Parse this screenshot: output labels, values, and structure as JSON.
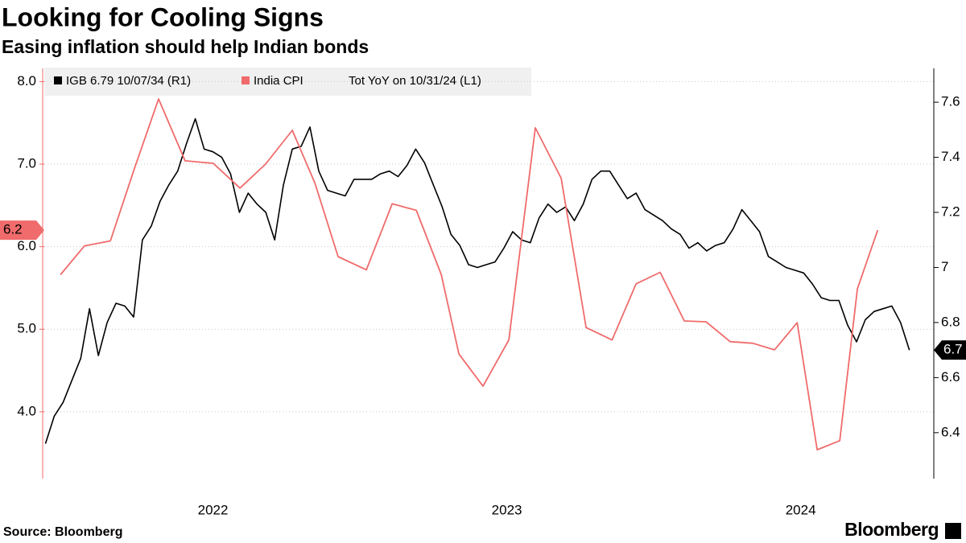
{
  "chart_data": {
    "type": "line",
    "title": "Looking for Cooling Signs",
    "subtitle": "Easing inflation should help Indian bonds",
    "source": "Source: Bloomberg",
    "brand": "Bloomberg",
    "xlim": [
      2021.926,
      2024.953
    ],
    "xticks": [
      {
        "value": 2022.5,
        "label": "2022"
      },
      {
        "value": 2023.5,
        "label": "2023"
      },
      {
        "value": 2024.5,
        "label": "2024"
      }
    ],
    "ylim": [
      3.19,
      8.16
    ],
    "yticks": [
      {
        "value": 4,
        "label": "4.0"
      },
      {
        "value": 5,
        "label": "5.0"
      },
      {
        "value": 6,
        "label": "6.0"
      },
      {
        "value": 7,
        "label": "7.0"
      },
      {
        "value": 8,
        "label": "8.0"
      }
    ],
    "y2lim": [
      6.233,
      7.723
    ],
    "y2ticks": [
      6.4,
      6.6,
      6.8,
      7.0,
      7.2,
      7.4,
      7.6
    ],
    "grid": true,
    "legend": "top-left",
    "series": [
      {
        "name": "IGB 6.79 10/07/34 (R1)",
        "color": "#000000",
        "axis": "y2",
        "x": [
          2021.93,
          2021.96,
          2021.99,
          2022.02,
          2022.05,
          2022.08,
          2022.11,
          2022.14,
          2022.17,
          2022.2,
          2022.23,
          2022.26,
          2022.29,
          2022.32,
          2022.35,
          2022.38,
          2022.41,
          2022.44,
          2022.47,
          2022.5,
          2022.53,
          2022.56,
          2022.59,
          2022.62,
          2022.65,
          2022.68,
          2022.71,
          2022.74,
          2022.77,
          2022.8,
          2022.83,
          2022.86,
          2022.89,
          2022.92,
          2022.95,
          2022.98,
          2023.01,
          2023.04,
          2023.07,
          2023.1,
          2023.13,
          2023.16,
          2023.19,
          2023.22,
          2023.25,
          2023.28,
          2023.31,
          2023.34,
          2023.37,
          2023.4,
          2023.43,
          2023.46,
          2023.49,
          2023.52,
          2023.55,
          2023.58,
          2023.61,
          2023.64,
          2023.67,
          2023.7,
          2023.73,
          2023.76,
          2023.79,
          2023.82,
          2023.85,
          2023.88,
          2023.91,
          2023.94,
          2023.97,
          2024.0,
          2024.03,
          2024.06,
          2024.09,
          2024.12,
          2024.15,
          2024.18,
          2024.21,
          2024.24,
          2024.27,
          2024.3,
          2024.33,
          2024.36,
          2024.39,
          2024.42,
          2024.45,
          2024.48,
          2024.51,
          2024.54,
          2024.57,
          2024.6,
          2024.63,
          2024.66,
          2024.69,
          2024.72,
          2024.75,
          2024.78,
          2024.81,
          2024.84,
          2024.87
        ],
        "values": [
          6.36,
          6.46,
          6.51,
          6.59,
          6.67,
          6.85,
          6.68,
          6.8,
          6.87,
          6.86,
          6.82,
          7.1,
          7.15,
          7.24,
          7.3,
          7.35,
          7.45,
          7.54,
          7.43,
          7.42,
          7.4,
          7.34,
          7.2,
          7.27,
          7.23,
          7.2,
          7.1,
          7.3,
          7.43,
          7.44,
          7.51,
          7.35,
          7.28,
          7.27,
          7.26,
          7.32,
          7.32,
          7.32,
          7.34,
          7.35,
          7.33,
          7.37,
          7.43,
          7.38,
          7.3,
          7.22,
          7.12,
          7.08,
          7.01,
          7.0,
          7.01,
          7.02,
          7.07,
          7.13,
          7.1,
          7.09,
          7.18,
          7.23,
          7.2,
          7.22,
          7.17,
          7.23,
          7.32,
          7.35,
          7.35,
          7.3,
          7.25,
          7.27,
          7.21,
          7.19,
          7.17,
          7.14,
          7.12,
          7.07,
          7.09,
          7.06,
          7.08,
          7.09,
          7.14,
          7.21,
          7.17,
          7.13,
          7.04,
          7.02,
          7.0,
          6.99,
          6.98,
          6.94,
          6.89,
          6.88,
          6.88,
          6.79,
          6.73,
          6.81,
          6.84,
          6.85,
          6.86,
          6.8,
          6.7
        ]
      },
      {
        "name": "India CPI",
        "description": "Tot YoY on 10/31/24 (L1)",
        "color": "#f06b6b",
        "x": [
          2021.981,
          2022.063,
          2022.151,
          2022.233,
          2022.315,
          2022.405,
          2022.501,
          2022.592,
          2022.679,
          2022.77,
          2022.847,
          2022.926,
          2023.022,
          2023.11,
          2023.192,
          2023.277,
          2023.337,
          2023.419,
          2023.507,
          2023.597,
          2023.685,
          2023.77,
          2023.858,
          2023.94,
          2024.022,
          2024.104,
          2024.178,
          2024.26,
          2024.337,
          2024.411,
          2024.488,
          2024.556,
          2024.633,
          2024.693,
          2024.762
        ],
        "values": [
          5.66,
          6.01,
          6.07,
          6.95,
          7.79,
          7.04,
          7.01,
          6.71,
          7.0,
          7.41,
          6.77,
          5.88,
          5.72,
          6.52,
          6.44,
          5.66,
          4.7,
          4.31,
          4.87,
          7.44,
          6.83,
          5.02,
          4.87,
          5.55,
          5.69,
          5.1,
          5.09,
          4.85,
          4.83,
          4.75,
          5.08,
          3.54,
          3.65,
          5.49,
          6.2
        ]
      }
    ]
  }
}
